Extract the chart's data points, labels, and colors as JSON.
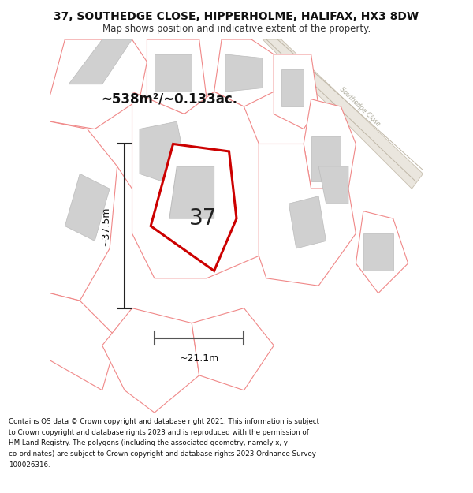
{
  "title": "37, SOUTHEDGE CLOSE, HIPPERHOLME, HALIFAX, HX3 8DW",
  "subtitle": "Map shows position and indicative extent of the property.",
  "footer_line1": "Contains OS data © Crown copyright and database right 2021. This information is subject",
  "footer_line2": "to Crown copyright and database rights 2023 and is reproduced with the permission of",
  "footer_line3": "HM Land Registry. The polygons (including the associated geometry, namely x, y",
  "footer_line4": "co-ordinates) are subject to Crown copyright and database rights 2023 Ordnance Survey",
  "footer_line5": "100026316.",
  "area_text": "~538m²/~0.133ac.",
  "number_label": "37",
  "dim_h": "~37.5m",
  "dim_w": "~21.1m",
  "road_label": "Southedge Close",
  "bg_color": "#ffffff",
  "map_bg": "#f5f5f0",
  "plot_edge": "#cc0000",
  "building_fill": "#d0d0d0",
  "building_edge": "#bbbbbb",
  "other_edge": "#f08888",
  "other_fill": "#ffffff",
  "dim_color": "#333333"
}
